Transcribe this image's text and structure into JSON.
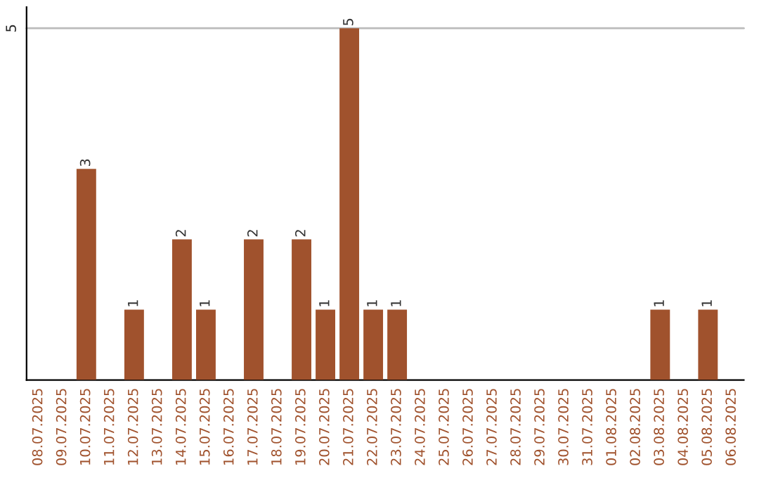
{
  "chart_data": {
    "type": "bar",
    "categories": [
      "08.07.2025",
      "09.07.2025",
      "10.07.2025",
      "11.07.2025",
      "12.07.2025",
      "13.07.2025",
      "14.07.2025",
      "15.07.2025",
      "16.07.2025",
      "17.07.2025",
      "18.07.2025",
      "19.07.2025",
      "20.07.2025",
      "21.07.2025",
      "22.07.2025",
      "23.07.2025",
      "24.07.2025",
      "25.07.2025",
      "26.07.2025",
      "27.07.2025",
      "28.07.2025",
      "29.07.2025",
      "30.07.2025",
      "31.07.2025",
      "01.08.2025",
      "02.08.2025",
      "03.08.2025",
      "04.08.2025",
      "05.08.2025",
      "06.08.2025"
    ],
    "values": [
      0,
      0,
      3,
      0,
      1,
      0,
      2,
      1,
      0,
      2,
      0,
      2,
      1,
      5,
      1,
      1,
      0,
      0,
      0,
      0,
      0,
      0,
      0,
      0,
      0,
      0,
      1,
      0,
      1,
      0
    ],
    "value_labels": [
      null,
      null,
      "3",
      null,
      "1",
      null,
      "2",
      "1",
      null,
      "2",
      null,
      "2",
      "1",
      "5",
      "1",
      "1",
      null,
      null,
      null,
      null,
      null,
      null,
      null,
      null,
      null,
      null,
      "1",
      null,
      "1",
      null
    ],
    "color": "#a0522d",
    "ylim": [
      0,
      5.3
    ],
    "yticks": [
      5
    ],
    "grid": "y",
    "legend": false
  }
}
